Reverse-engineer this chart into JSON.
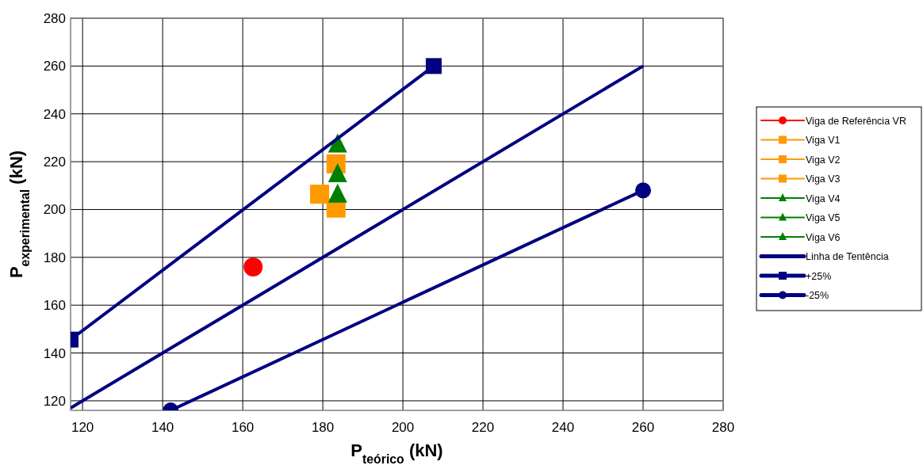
{
  "chart_data": {
    "type": "scatter",
    "xlabel": "P$_{teórico}$ (kN)",
    "ylabel": "P$_{experimental}$ (kN)",
    "xlim": [
      117,
      280
    ],
    "ylim": [
      116,
      280
    ],
    "xticks": [
      120,
      140,
      160,
      180,
      200,
      220,
      240,
      260,
      280
    ],
    "yticks": [
      120,
      140,
      160,
      180,
      200,
      220,
      240,
      260,
      280
    ],
    "grid": true,
    "legend": "right",
    "series": [
      {
        "name": "Viga de Referência VR",
        "color": "#ff0000",
        "marker": "circle",
        "x": [
          162.6
        ],
        "values": [
          176
        ]
      },
      {
        "name": "Viga V1",
        "color": "#ff9900",
        "marker": "square",
        "x": [
          179.2
        ],
        "values": [
          206.4
        ]
      },
      {
        "name": "Viga V2",
        "color": "#ff9900",
        "marker": "square",
        "x": [
          183.3
        ],
        "values": [
          219.1
        ]
      },
      {
        "name": "Viga V3",
        "color": "#ff9900",
        "marker": "square",
        "x": [
          183.3
        ],
        "values": [
          200.6
        ]
      },
      {
        "name": "Viga V4",
        "color": "#008000",
        "marker": "triangle",
        "x": [
          183.7
        ],
        "values": [
          227
        ]
      },
      {
        "name": "Viga V5",
        "color": "#008000",
        "marker": "triangle",
        "x": [
          183.7
        ],
        "values": [
          214.6
        ]
      },
      {
        "name": "Viga V6",
        "color": "#008000",
        "marker": "triangle",
        "x": [
          183.7
        ],
        "values": [
          206.1
        ]
      },
      {
        "name": "Linha de Tentência",
        "type": "line",
        "color": "#000080",
        "marker": "none",
        "x": [
          117,
          260
        ],
        "values": [
          117,
          260
        ]
      },
      {
        "name": "+25%",
        "type": "line",
        "color": "#000080",
        "marker": "square",
        "x": [
          117,
          207.7
        ],
        "values": [
          145.6,
          260
        ]
      },
      {
        "name": "-25%",
        "type": "line",
        "color": "#000080",
        "marker": "circle",
        "x": [
          142,
          260
        ],
        "values": [
          116,
          208
        ]
      }
    ]
  }
}
